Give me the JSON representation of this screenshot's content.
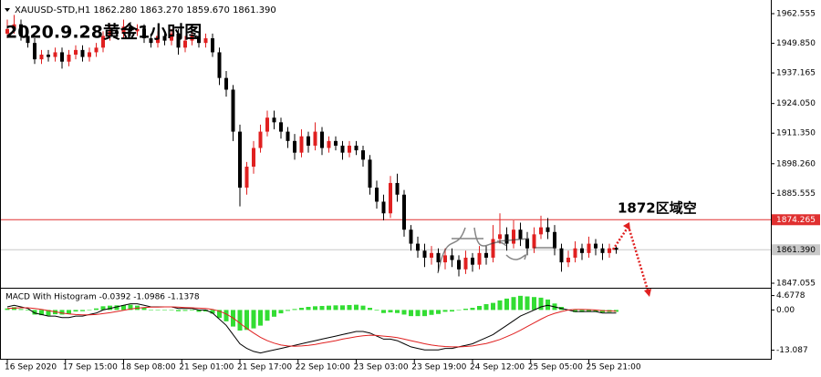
{
  "chart_data": [
    {
      "type": "candlestick",
      "subtitle": "XAUUSD-STD,H1  1862.280 1863.270 1859.670 1861.390",
      "title": "2020.9.28黄金1小时图",
      "annotation": "1872区域空",
      "up_color": "#e02020",
      "down_color": "#000000",
      "ylim": [
        1845.5,
        1966.85
      ],
      "yticks": [
        1962.555,
        {
          "value": 1949.85,
          "label": "1949.850"
        },
        1937.165,
        {
          "value": 1924.05,
          "label": "1924.050"
        },
        {
          "value": 1911.35,
          "label": "1911.350"
        },
        {
          "value": 1898.26,
          "label": "1898.260"
        },
        1885.555,
        1847.055
      ],
      "hlines": [
        {
          "value": 1874.265,
          "label": "1874.265",
          "color": "#e03030",
          "text_color": "#ffffff"
        },
        {
          "value": 1861.39,
          "label": "1861.390",
          "color": "#c8c8c8",
          "text_color": "#000000"
        }
      ],
      "ohlc": [
        [
          1954,
          1960,
          1952,
          1956
        ],
        [
          1956,
          1962,
          1954,
          1958
        ],
        [
          1958,
          1960,
          1951,
          1953
        ],
        [
          1953,
          1955,
          1948,
          1950
        ],
        [
          1950,
          1952,
          1941,
          1943
        ],
        [
          1943,
          1947,
          1941,
          1945
        ],
        [
          1945,
          1947,
          1942,
          1944
        ],
        [
          1944,
          1948,
          1942,
          1946
        ],
        [
          1946,
          1948,
          1939,
          1942
        ],
        [
          1942,
          1947,
          1940,
          1945
        ],
        [
          1945,
          1949,
          1943,
          1947
        ],
        [
          1947,
          1949,
          1942,
          1944
        ],
        [
          1944,
          1948,
          1942,
          1946
        ],
        [
          1946,
          1950,
          1944,
          1948
        ],
        [
          1948,
          1955,
          1946,
          1953
        ],
        [
          1953,
          1958,
          1951,
          1955
        ],
        [
          1955,
          1957,
          1952,
          1954
        ],
        [
          1954,
          1960,
          1952,
          1957
        ],
        [
          1957,
          1959,
          1953,
          1955
        ],
        [
          1955,
          1958,
          1953,
          1956
        ],
        [
          1956,
          1958,
          1950,
          1952
        ],
        [
          1952,
          1954,
          1948,
          1950
        ],
        [
          1950,
          1955,
          1948,
          1953
        ],
        [
          1953,
          1955,
          1949,
          1951
        ],
        [
          1951,
          1956,
          1949,
          1954
        ],
        [
          1954,
          1956,
          1945,
          1948
        ],
        [
          1948,
          1953,
          1946,
          1951
        ],
        [
          1951,
          1955,
          1949,
          1953
        ],
        [
          1953,
          1955,
          1948,
          1950
        ],
        [
          1950,
          1954,
          1948,
          1952
        ],
        [
          1952,
          1954,
          1944,
          1946
        ],
        [
          1946,
          1948,
          1932,
          1935
        ],
        [
          1935,
          1938,
          1927,
          1930
        ],
        [
          1930,
          1932,
          1908,
          1912
        ],
        [
          1912,
          1915,
          1880,
          1888
        ],
        [
          1888,
          1899,
          1885,
          1897
        ],
        [
          1897,
          1908,
          1894,
          1905
        ],
        [
          1905,
          1915,
          1903,
          1912
        ],
        [
          1912,
          1921,
          1910,
          1918
        ],
        [
          1918,
          1921,
          1913,
          1916
        ],
        [
          1916,
          1918,
          1909,
          1912
        ],
        [
          1912,
          1914,
          1905,
          1908
        ],
        [
          1908,
          1911,
          1900,
          1903
        ],
        [
          1903,
          1913,
          1901,
          1910
        ],
        [
          1910,
          1912,
          1903,
          1906
        ],
        [
          1906,
          1916,
          1904,
          1912
        ],
        [
          1912,
          1914,
          1902,
          1905
        ],
        [
          1905,
          1910,
          1903,
          1908
        ],
        [
          1908,
          1910,
          1904,
          1906
        ],
        [
          1906,
          1908,
          1900,
          1903
        ],
        [
          1903,
          1908,
          1901,
          1906
        ],
        [
          1906,
          1908,
          1902,
          1904
        ],
        [
          1904,
          1906,
          1897,
          1900
        ],
        [
          1900,
          1902,
          1885,
          1888
        ],
        [
          1888,
          1891,
          1879,
          1882
        ],
        [
          1882,
          1885,
          1874,
          1877
        ],
        [
          1877,
          1893,
          1875,
          1890
        ],
        [
          1890,
          1894,
          1882,
          1885
        ],
        [
          1885,
          1887,
          1867,
          1870
        ],
        [
          1870,
          1872,
          1861,
          1864
        ],
        [
          1864,
          1867,
          1858,
          1861
        ],
        [
          1861,
          1864,
          1854,
          1858
        ],
        [
          1858,
          1863,
          1855,
          1860
        ],
        [
          1860,
          1862,
          1852,
          1856
        ],
        [
          1856,
          1862,
          1853,
          1859
        ],
        [
          1859,
          1862,
          1854,
          1857
        ],
        [
          1857,
          1859,
          1850,
          1853
        ],
        [
          1853,
          1861,
          1851,
          1858
        ],
        [
          1858,
          1860,
          1852,
          1855
        ],
        [
          1855,
          1863,
          1853,
          1860
        ],
        [
          1860,
          1863,
          1855,
          1858
        ],
        [
          1858,
          1872,
          1856,
          1866
        ],
        [
          1866,
          1877,
          1864,
          1868
        ],
        [
          1868,
          1871,
          1861,
          1864
        ],
        [
          1864,
          1874,
          1862,
          1870
        ],
        [
          1870,
          1873,
          1863,
          1866
        ],
        [
          1866,
          1869,
          1859,
          1862
        ],
        [
          1862,
          1871,
          1860,
          1868
        ],
        [
          1868,
          1876,
          1866,
          1871
        ],
        [
          1871,
          1875,
          1866,
          1869
        ],
        [
          1869,
          1872,
          1859,
          1862
        ],
        [
          1862,
          1864,
          1852,
          1856
        ],
        [
          1856,
          1861,
          1854,
          1858
        ],
        [
          1858,
          1865,
          1856,
          1862
        ],
        [
          1862,
          1864,
          1857,
          1860
        ],
        [
          1860,
          1867,
          1858,
          1864
        ],
        [
          1864,
          1866,
          1859,
          1862
        ],
        [
          1862,
          1864,
          1857,
          1860
        ],
        [
          1860,
          1864,
          1858,
          1862
        ],
        [
          1862.28,
          1863.27,
          1859.67,
          1861.39
        ]
      ]
    },
    {
      "type": "macd",
      "title": "MACD With Histogram -0.0392 -1.0986 -1.1378",
      "ylim": [
        -15.59,
        6.63
      ],
      "yticks": [
        4.6778,
        {
          "value": 0,
          "label": "0.00"
        },
        -13.087
      ],
      "xticks": [
        {
          "value": 0,
          "label": "16 Sep 2020"
        },
        {
          "value": 8.5,
          "label": "17 Sep 15:00"
        },
        {
          "value": 17,
          "label": "18 Sep 08:00"
        },
        {
          "value": 25.5,
          "label": "21 Sep 01:00"
        },
        {
          "value": 34,
          "label": "21 Sep 17:00"
        },
        {
          "value": 42.5,
          "label": "22 Sep 10:00"
        },
        {
          "value": 51,
          "label": "23 Sep 03:00"
        },
        {
          "value": 59.5,
          "label": "23 Sep 19:00"
        },
        {
          "value": 68,
          "label": "24 Sep 12:00"
        },
        {
          "value": 76.5,
          "label": "25 Sep 05:00"
        },
        {
          "value": 85,
          "label": "25 Sep 21:00"
        }
      ],
      "series": [
        {
          "kind": "histogram",
          "color": "#33dd33",
          "values": [
            0.5,
            0.9,
            0.3,
            -0.2,
            -1.5,
            -1.7,
            -1.8,
            -1.4,
            -1.5,
            -1.2,
            -0.5,
            -0.4,
            0.1,
            0.5,
            1.2,
            1.4,
            1.5,
            1.6,
            1.7,
            1.4,
            0.7,
            0.1,
            0.1,
            0,
            0,
            -0.4,
            -0.3,
            -0.2,
            -0.6,
            -0.5,
            -1.2,
            -2.6,
            -3.7,
            -5.4,
            -6.7,
            -6.5,
            -6,
            -5.1,
            -3.5,
            -2.2,
            -1.1,
            -0.3,
            0.3,
            0.7,
            1,
            1.2,
            1.3,
            1.4,
            1.5,
            1.5,
            1.6,
            1.7,
            1.4,
            0.7,
            -0.2,
            -1,
            -0.8,
            -1,
            -1.5,
            -2,
            -2,
            -2,
            -1.6,
            -1.3,
            -0.6,
            -0.5,
            0,
            0.4,
            0.7,
            1.3,
            1.9,
            2.3,
            3.1,
            3.7,
            4.2,
            4.6,
            4.4,
            4.2,
            4,
            3.4,
            2.1,
            1,
            0,
            -0.7,
            -0.7,
            -0.6,
            -0.5,
            -0.8,
            -0.7,
            -0.6
          ]
        },
        {
          "kind": "line",
          "color": "#000000",
          "values": [
            1,
            1.5,
            1,
            0.5,
            -1,
            -1.5,
            -2,
            -2,
            -2.5,
            -2.5,
            -2,
            -2,
            -1.5,
            -1,
            0,
            0.5,
            1,
            1.5,
            2,
            2,
            1.5,
            1,
            1,
            1,
            1,
            0.5,
            0.5,
            0.5,
            0,
            0,
            -1,
            -3,
            -5,
            -8,
            -11,
            -12.5,
            -13.5,
            -14,
            -13.5,
            -13,
            -12.5,
            -12,
            -11.5,
            -11,
            -10.5,
            -10,
            -9.5,
            -9,
            -8.5,
            -8,
            -7.5,
            -7,
            -7,
            -7.5,
            -8.5,
            -9.5,
            -9.5,
            -10,
            -11,
            -12,
            -12.5,
            -13,
            -13,
            -13,
            -12.5,
            -12.5,
            -12,
            -11.5,
            -11,
            -10,
            -9,
            -8,
            -6.5,
            -5,
            -3.5,
            -2,
            -1,
            0,
            1,
            1.5,
            1,
            0.5,
            0,
            -0.5,
            -0.5,
            -0.5,
            -0.5,
            -1,
            -1,
            -1
          ]
        },
        {
          "kind": "line",
          "color": "#e02020",
          "values": [
            0.5,
            0.6,
            0.7,
            0.7,
            0.5,
            0.2,
            -0.2,
            -0.6,
            -1,
            -1.3,
            -1.5,
            -1.6,
            -1.6,
            -1.5,
            -1.2,
            -0.9,
            -0.5,
            -0.1,
            0.3,
            0.6,
            0.8,
            0.9,
            0.9,
            1,
            1,
            0.9,
            0.8,
            0.7,
            0.6,
            0.5,
            0.2,
            -0.4,
            -1.3,
            -2.6,
            -4.3,
            -6,
            -7.5,
            -8.9,
            -10,
            -10.8,
            -11.4,
            -11.7,
            -11.8,
            -11.7,
            -11.5,
            -11.2,
            -10.8,
            -10.4,
            -10,
            -9.5,
            -9.1,
            -8.7,
            -8.4,
            -8.2,
            -8.3,
            -8.5,
            -8.7,
            -9,
            -9.5,
            -10,
            -10.5,
            -11,
            -11.4,
            -11.7,
            -11.9,
            -12,
            -12,
            -11.9,
            -11.7,
            -11.3,
            -10.9,
            -10.3,
            -9.6,
            -8.7,
            -7.7,
            -6.6,
            -5.4,
            -4.2,
            -3,
            -1.9,
            -1.1,
            -0.5,
            0,
            0.2,
            0.2,
            0.1,
            0,
            -0.2,
            -0.3,
            -0.4
          ]
        }
      ]
    }
  ]
}
